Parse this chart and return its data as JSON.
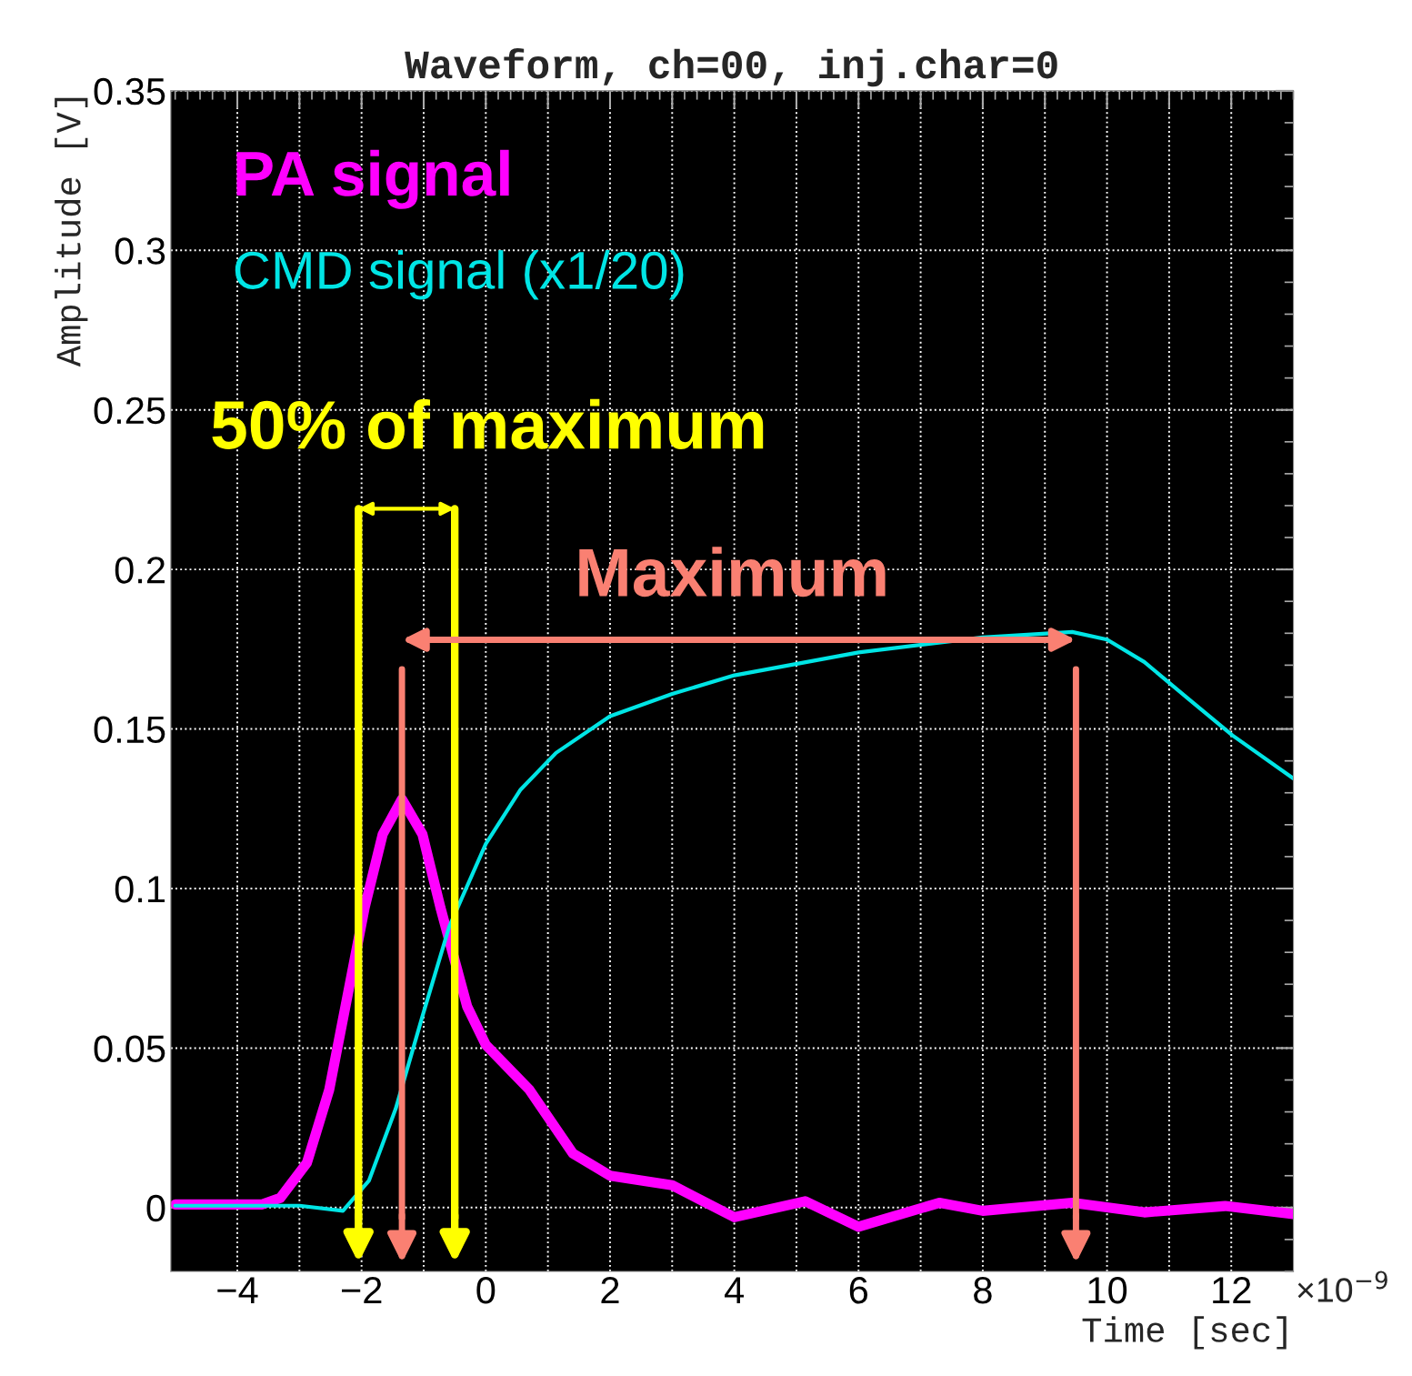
{
  "chart_data": {
    "type": "line",
    "title": "Waveform, ch=00, inj.char=0",
    "xlabel": "Time [sec]",
    "ylabel": "Amplitude [V]",
    "xlim": [
      -5.07,
      13
    ],
    "ylim": [
      -0.02,
      0.35
    ],
    "xticks": [
      {
        "value": -4,
        "label": "−4"
      },
      {
        "value": -3,
        "label": null
      },
      {
        "value": -2,
        "label": "−2"
      },
      {
        "value": -1,
        "label": null
      },
      0,
      {
        "value": 1,
        "label": null
      },
      2,
      {
        "value": 3,
        "label": null
      },
      4,
      {
        "value": 5,
        "label": null
      },
      6,
      {
        "value": 7,
        "label": null
      },
      8,
      {
        "value": 9,
        "label": null
      },
      10,
      {
        "value": 11,
        "label": null
      },
      12
    ],
    "yticks": [
      0,
      0.05,
      0.1,
      0.15,
      0.2,
      0.25,
      0.3,
      0.35
    ],
    "grid": true,
    "legend": false,
    "marker": "none",
    "line_style": "solid",
    "series": [
      {
        "name": "PA signal",
        "color": "#ff00ff",
        "x": [
          -5.0,
          -4.0,
          -3.6,
          -3.31,
          -2.88,
          -2.52,
          -2.23,
          -1.95,
          -1.66,
          -1.35,
          -1.02,
          -0.73,
          -0.3,
          0.0,
          0.7,
          1.4,
          2.0,
          3.0,
          4.0,
          5.14,
          6.0,
          7.3,
          8.0,
          9.44,
          10.6,
          11.9,
          13.0
        ],
        "values": [
          0.001,
          0.001,
          0.001,
          0.003,
          0.014,
          0.037,
          0.066,
          0.094,
          0.117,
          0.128,
          0.117,
          0.094,
          0.063,
          0.051,
          0.037,
          0.017,
          0.01,
          0.007,
          -0.003,
          0.002,
          -0.006,
          0.0015,
          -0.001,
          0.0015,
          -0.0015,
          0.0005,
          -0.002
        ]
      },
      {
        "name": "CMD signal (x1/20)",
        "color": "#00e5e5",
        "x": [
          -5.0,
          -4.0,
          -3.0,
          -2.3,
          -1.88,
          -1.45,
          -1.02,
          -0.59,
          0.0,
          0.56,
          1.13,
          2.0,
          3.0,
          4.0,
          6.0,
          8.0,
          9.44,
          10.0,
          10.6,
          11.3,
          12.02,
          13.0
        ],
        "values": [
          0.0006,
          0.0006,
          0.0006,
          -0.001,
          0.0085,
          0.031,
          0.06,
          0.088,
          0.114,
          0.131,
          0.1425,
          0.154,
          0.161,
          0.1668,
          0.174,
          0.1787,
          0.1804,
          0.178,
          0.171,
          0.1596,
          0.148,
          0.1345
        ]
      }
    ],
    "ref_lines": [
      {
        "axis": "x",
        "value": -2.05,
        "color": "#ffff00"
      },
      {
        "axis": "x",
        "value": -0.5,
        "color": "#ffff00"
      },
      {
        "axis": "x",
        "value": -1.35,
        "color": "#fa8072"
      },
      {
        "axis": "x",
        "value": 9.5,
        "color": "#fa8072"
      }
    ],
    "annotations": [
      "50% of maximum",
      "Maximum",
      "×10$^{−9}$"
    ]
  }
}
